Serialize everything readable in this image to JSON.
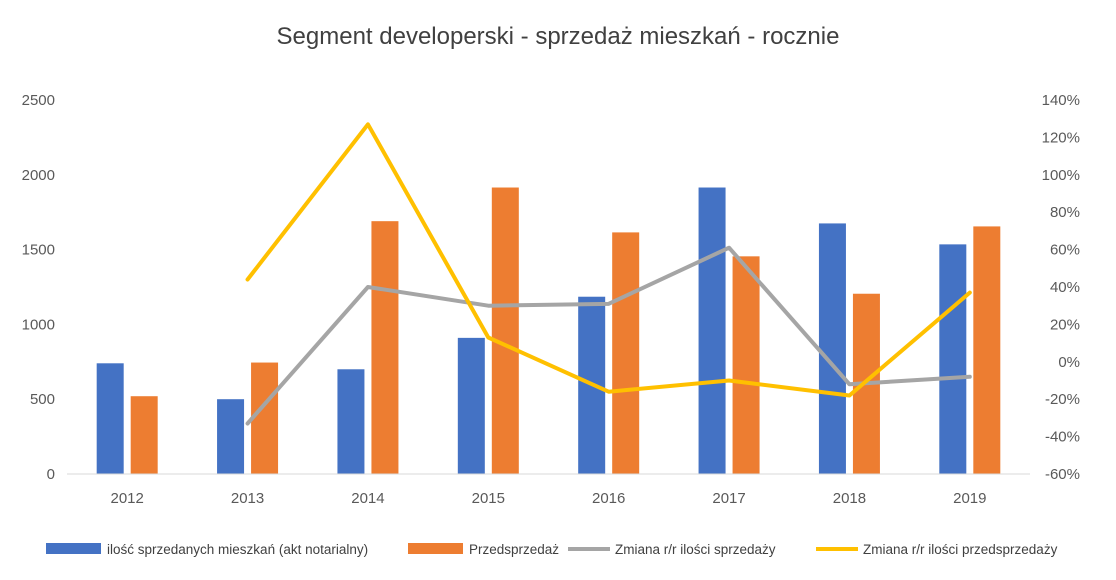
{
  "chart_data": {
    "type": "bar",
    "title": "Segment developerski - sprzedaż mieszkań - rocznie",
    "categories": [
      "2012",
      "2013",
      "2014",
      "2015",
      "2016",
      "2017",
      "2018",
      "2019"
    ],
    "y_left": {
      "range": [
        0,
        2500
      ],
      "ticks": [
        "0",
        "500",
        "1000",
        "1500",
        "2000",
        "2500"
      ]
    },
    "y_right": {
      "range": [
        -60,
        140
      ],
      "unit": "%",
      "ticks": [
        "-60%",
        "-40%",
        "-20%",
        "0%",
        "20%",
        "40%",
        "60%",
        "80%",
        "100%",
        "120%",
        "140%"
      ]
    },
    "series": [
      {
        "name": "ilość sprzedanych mieszkań (akt notarialny)",
        "type": "bar",
        "axis": "left",
        "color": "#4472C4",
        "values": [
          740,
          500,
          700,
          910,
          1185,
          1915,
          1675,
          1535
        ]
      },
      {
        "name": "Przedsprzedaż",
        "type": "bar",
        "axis": "left",
        "color": "#ED7D31",
        "values": [
          520,
          745,
          1690,
          1915,
          1615,
          1455,
          1205,
          1655
        ]
      },
      {
        "name": "Zmiana r/r ilości sprzedaży",
        "type": "line",
        "axis": "right",
        "color": "#A5A5A5",
        "values": [
          null,
          -33,
          40,
          30,
          31,
          61,
          -12,
          -8
        ]
      },
      {
        "name": "Zmiana r/r ilości przedsprzedaży",
        "type": "line",
        "axis": "right",
        "color": "#FFC000",
        "values": [
          null,
          44,
          127,
          13,
          -16,
          -10,
          -18,
          37
        ]
      }
    ],
    "legend_position": "bottom",
    "grid": false
  }
}
